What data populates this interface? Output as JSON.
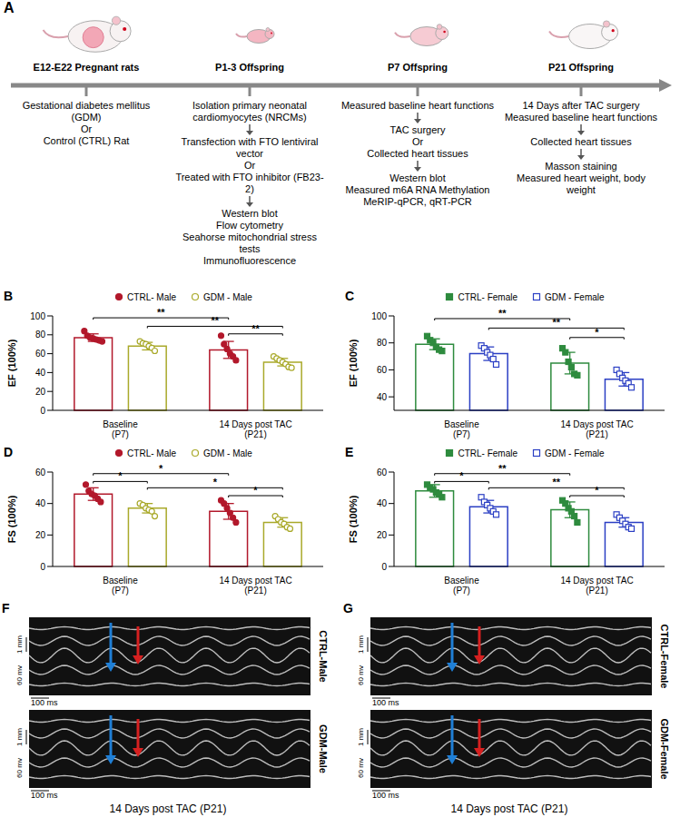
{
  "diagram": {
    "panel": "A",
    "stages": [
      {
        "label": "E12-E22 Pregnant rats",
        "groups": [
          [
            "Gestational diabetes mellitus (GDM)",
            "Or",
            "Control (CTRL) Rat"
          ]
        ]
      },
      {
        "label": "P1-3 Offspring",
        "groups": [
          [
            "Isolation primary neonatal cardiomyocytes (NRCMs)"
          ],
          [
            "Transfection with FTO lentiviral vector",
            "Or",
            "Treated with FTO inhibitor (FB23-2)"
          ],
          [
            "Western blot",
            "Flow cytometry",
            "Seahorse mitochondrial stress tests",
            "Immunofluorescence"
          ]
        ]
      },
      {
        "label": "P7 Offspring",
        "groups": [
          [
            "Measured baseline heart functions"
          ],
          [
            "TAC surgery",
            "Or",
            "Collected heart tissues"
          ],
          [
            "Western blot",
            "Measured m6A RNA Methylation",
            "MeRIP-qPCR, qRT-PCR"
          ]
        ]
      },
      {
        "label": "P21 Offspring",
        "groups": [
          [
            "14 Days after TAC surgery",
            "Measured baseline heart functions"
          ],
          [
            "Collected heart tissues"
          ],
          [
            "Masson staining",
            "Measured heart weight, body weight"
          ]
        ]
      }
    ]
  },
  "chart_data": [
    {
      "panel": "B",
      "type": "bar",
      "y_label": "EF (100%)",
      "categories": [
        "Baseline (P7)",
        "14 Days post TAC (P21)"
      ],
      "ylim": [
        0,
        100
      ],
      "yticks": [
        0,
        20,
        40,
        60,
        80,
        100
      ],
      "legend": "top",
      "series": [
        {
          "name": "CTRL- Male",
          "color": "#b2182b",
          "marker": "circle",
          "values": [
            77,
            64
          ],
          "errors": [
            4,
            9
          ],
          "points": [
            [
              84,
              79,
              77,
              76,
              75,
              74,
              73
            ],
            [
              79,
              70,
              65,
              60,
              57,
              53
            ]
          ]
        },
        {
          "name": "GDM - Male",
          "color": "#a9a92a",
          "marker": "circle-open",
          "values": [
            68,
            51
          ],
          "errors": [
            4,
            4
          ],
          "points": [
            [
              73,
              71,
              70,
              68,
              66,
              63
            ],
            [
              57,
              55,
              53,
              51,
              49,
              46,
              45
            ]
          ]
        }
      ],
      "brackets": [
        {
          "from": [
            0,
            0
          ],
          "to": [
            1,
            0
          ],
          "y": 98,
          "label": "**"
        },
        {
          "from": [
            0,
            1
          ],
          "to": [
            1,
            1
          ],
          "y": 89,
          "label": "**"
        },
        {
          "from": [
            1,
            0
          ],
          "to": [
            1,
            1
          ],
          "y": 81,
          "label": "**"
        }
      ]
    },
    {
      "panel": "C",
      "type": "bar",
      "y_label": "EF (100%)",
      "categories": [
        "Baseline (P7)",
        "14 Days post TAC (P21)"
      ],
      "ylim": [
        30,
        100
      ],
      "yticks": [
        40,
        60,
        80,
        100
      ],
      "legend": "top",
      "series": [
        {
          "name": "CTRL- Female",
          "color": "#2e8b3e",
          "marker": "square",
          "values": [
            79,
            65
          ],
          "errors": [
            4,
            8
          ],
          "points": [
            [
              85,
              82,
              80,
              77,
              75,
              74
            ],
            [
              76,
              73,
              66,
              62,
              57,
              56
            ]
          ]
        },
        {
          "name": "GDM - Female",
          "color": "#2b3fc4",
          "marker": "square-open",
          "values": [
            72,
            53
          ],
          "errors": [
            5,
            5
          ],
          "points": [
            [
              78,
              76,
              73,
              71,
              68,
              64
            ],
            [
              60,
              57,
              54,
              52,
              50,
              47
            ]
          ]
        }
      ],
      "brackets": [
        {
          "from": [
            0,
            0
          ],
          "to": [
            1,
            0
          ],
          "y": 98,
          "label": "**"
        },
        {
          "from": [
            0,
            1
          ],
          "to": [
            1,
            1
          ],
          "y": 91,
          "label": "**"
        },
        {
          "from": [
            1,
            0
          ],
          "to": [
            1,
            1
          ],
          "y": 84,
          "label": "*"
        }
      ]
    },
    {
      "panel": "D",
      "type": "bar",
      "y_label": "FS (100%)",
      "categories": [
        "Baseline (P7)",
        "14 Days post TAC (P21)"
      ],
      "ylim": [
        0,
        60
      ],
      "yticks": [
        0,
        20,
        40,
        60
      ],
      "legend": "top",
      "series": [
        {
          "name": "CTRL- Male",
          "color": "#b2182b",
          "marker": "circle",
          "values": [
            46,
            35
          ],
          "errors": [
            4,
            5
          ],
          "points": [
            [
              52,
              48,
              46,
              45,
              43,
              41
            ],
            [
              42,
              40,
              37,
              34,
              31,
              28
            ]
          ]
        },
        {
          "name": "GDM - Male",
          "color": "#a9a92a",
          "marker": "circle-open",
          "values": [
            37,
            28
          ],
          "errors": [
            3,
            3
          ],
          "points": [
            [
              40,
              39,
              37,
              36,
              35,
              32
            ],
            [
              32,
              30,
              28,
              27,
              25,
              24
            ]
          ]
        }
      ],
      "brackets": [
        {
          "from": [
            0,
            0
          ],
          "to": [
            1,
            0
          ],
          "y": 59,
          "label": "*"
        },
        {
          "from": [
            0,
            0
          ],
          "to": [
            0,
            1
          ],
          "y": 54,
          "label": "*"
        },
        {
          "from": [
            0,
            1
          ],
          "to": [
            1,
            1
          ],
          "y": 50,
          "label": "*"
        },
        {
          "from": [
            1,
            0
          ],
          "to": [
            1,
            1
          ],
          "y": 45,
          "label": "*"
        }
      ]
    },
    {
      "panel": "E",
      "type": "bar",
      "y_label": "FS (100%)",
      "categories": [
        "Baseline (P7)",
        "14 Days post TAC (P21)"
      ],
      "ylim": [
        0,
        60
      ],
      "yticks": [
        0,
        20,
        40,
        60
      ],
      "legend": "top",
      "series": [
        {
          "name": "CTRL- Female",
          "color": "#2e8b3e",
          "marker": "square",
          "values": [
            48,
            36
          ],
          "errors": [
            4,
            5
          ],
          "points": [
            [
              52,
              50,
              49,
              47,
              46,
              44
            ],
            [
              42,
              40,
              37,
              35,
              32,
              28
            ]
          ]
        },
        {
          "name": "GDM - Female",
          "color": "#2b3fc4",
          "marker": "square-open",
          "values": [
            38,
            28
          ],
          "errors": [
            4,
            3
          ],
          "points": [
            [
              44,
              41,
              39,
              37,
              35,
              33
            ],
            [
              33,
              31,
              29,
              27,
              25,
              24
            ]
          ]
        }
      ],
      "brackets": [
        {
          "from": [
            0,
            0
          ],
          "to": [
            1,
            0
          ],
          "y": 59,
          "label": "**"
        },
        {
          "from": [
            0,
            0
          ],
          "to": [
            0,
            1
          ],
          "y": 54,
          "label": "*"
        },
        {
          "from": [
            0,
            1
          ],
          "to": [
            1,
            1
          ],
          "y": 50,
          "label": "**"
        },
        {
          "from": [
            1,
            0
          ],
          "to": [
            1,
            1
          ],
          "y": 45,
          "label": "*"
        }
      ]
    }
  ],
  "images": [
    {
      "panel": "F",
      "rows": [
        "CTRL-Male",
        "GDM-Male"
      ],
      "time_scale": "100 ms",
      "amplitude_scale": "60 mv",
      "depth_scale": "1 mm",
      "caption": "14 Days post TAC (P21)"
    },
    {
      "panel": "G",
      "rows": [
        "CTRL-Female",
        "GDM-Female"
      ],
      "time_scale": "100 ms",
      "amplitude_scale": "60 mv",
      "depth_scale": "1 mm",
      "caption": "14 Days post TAC (P21)"
    }
  ]
}
